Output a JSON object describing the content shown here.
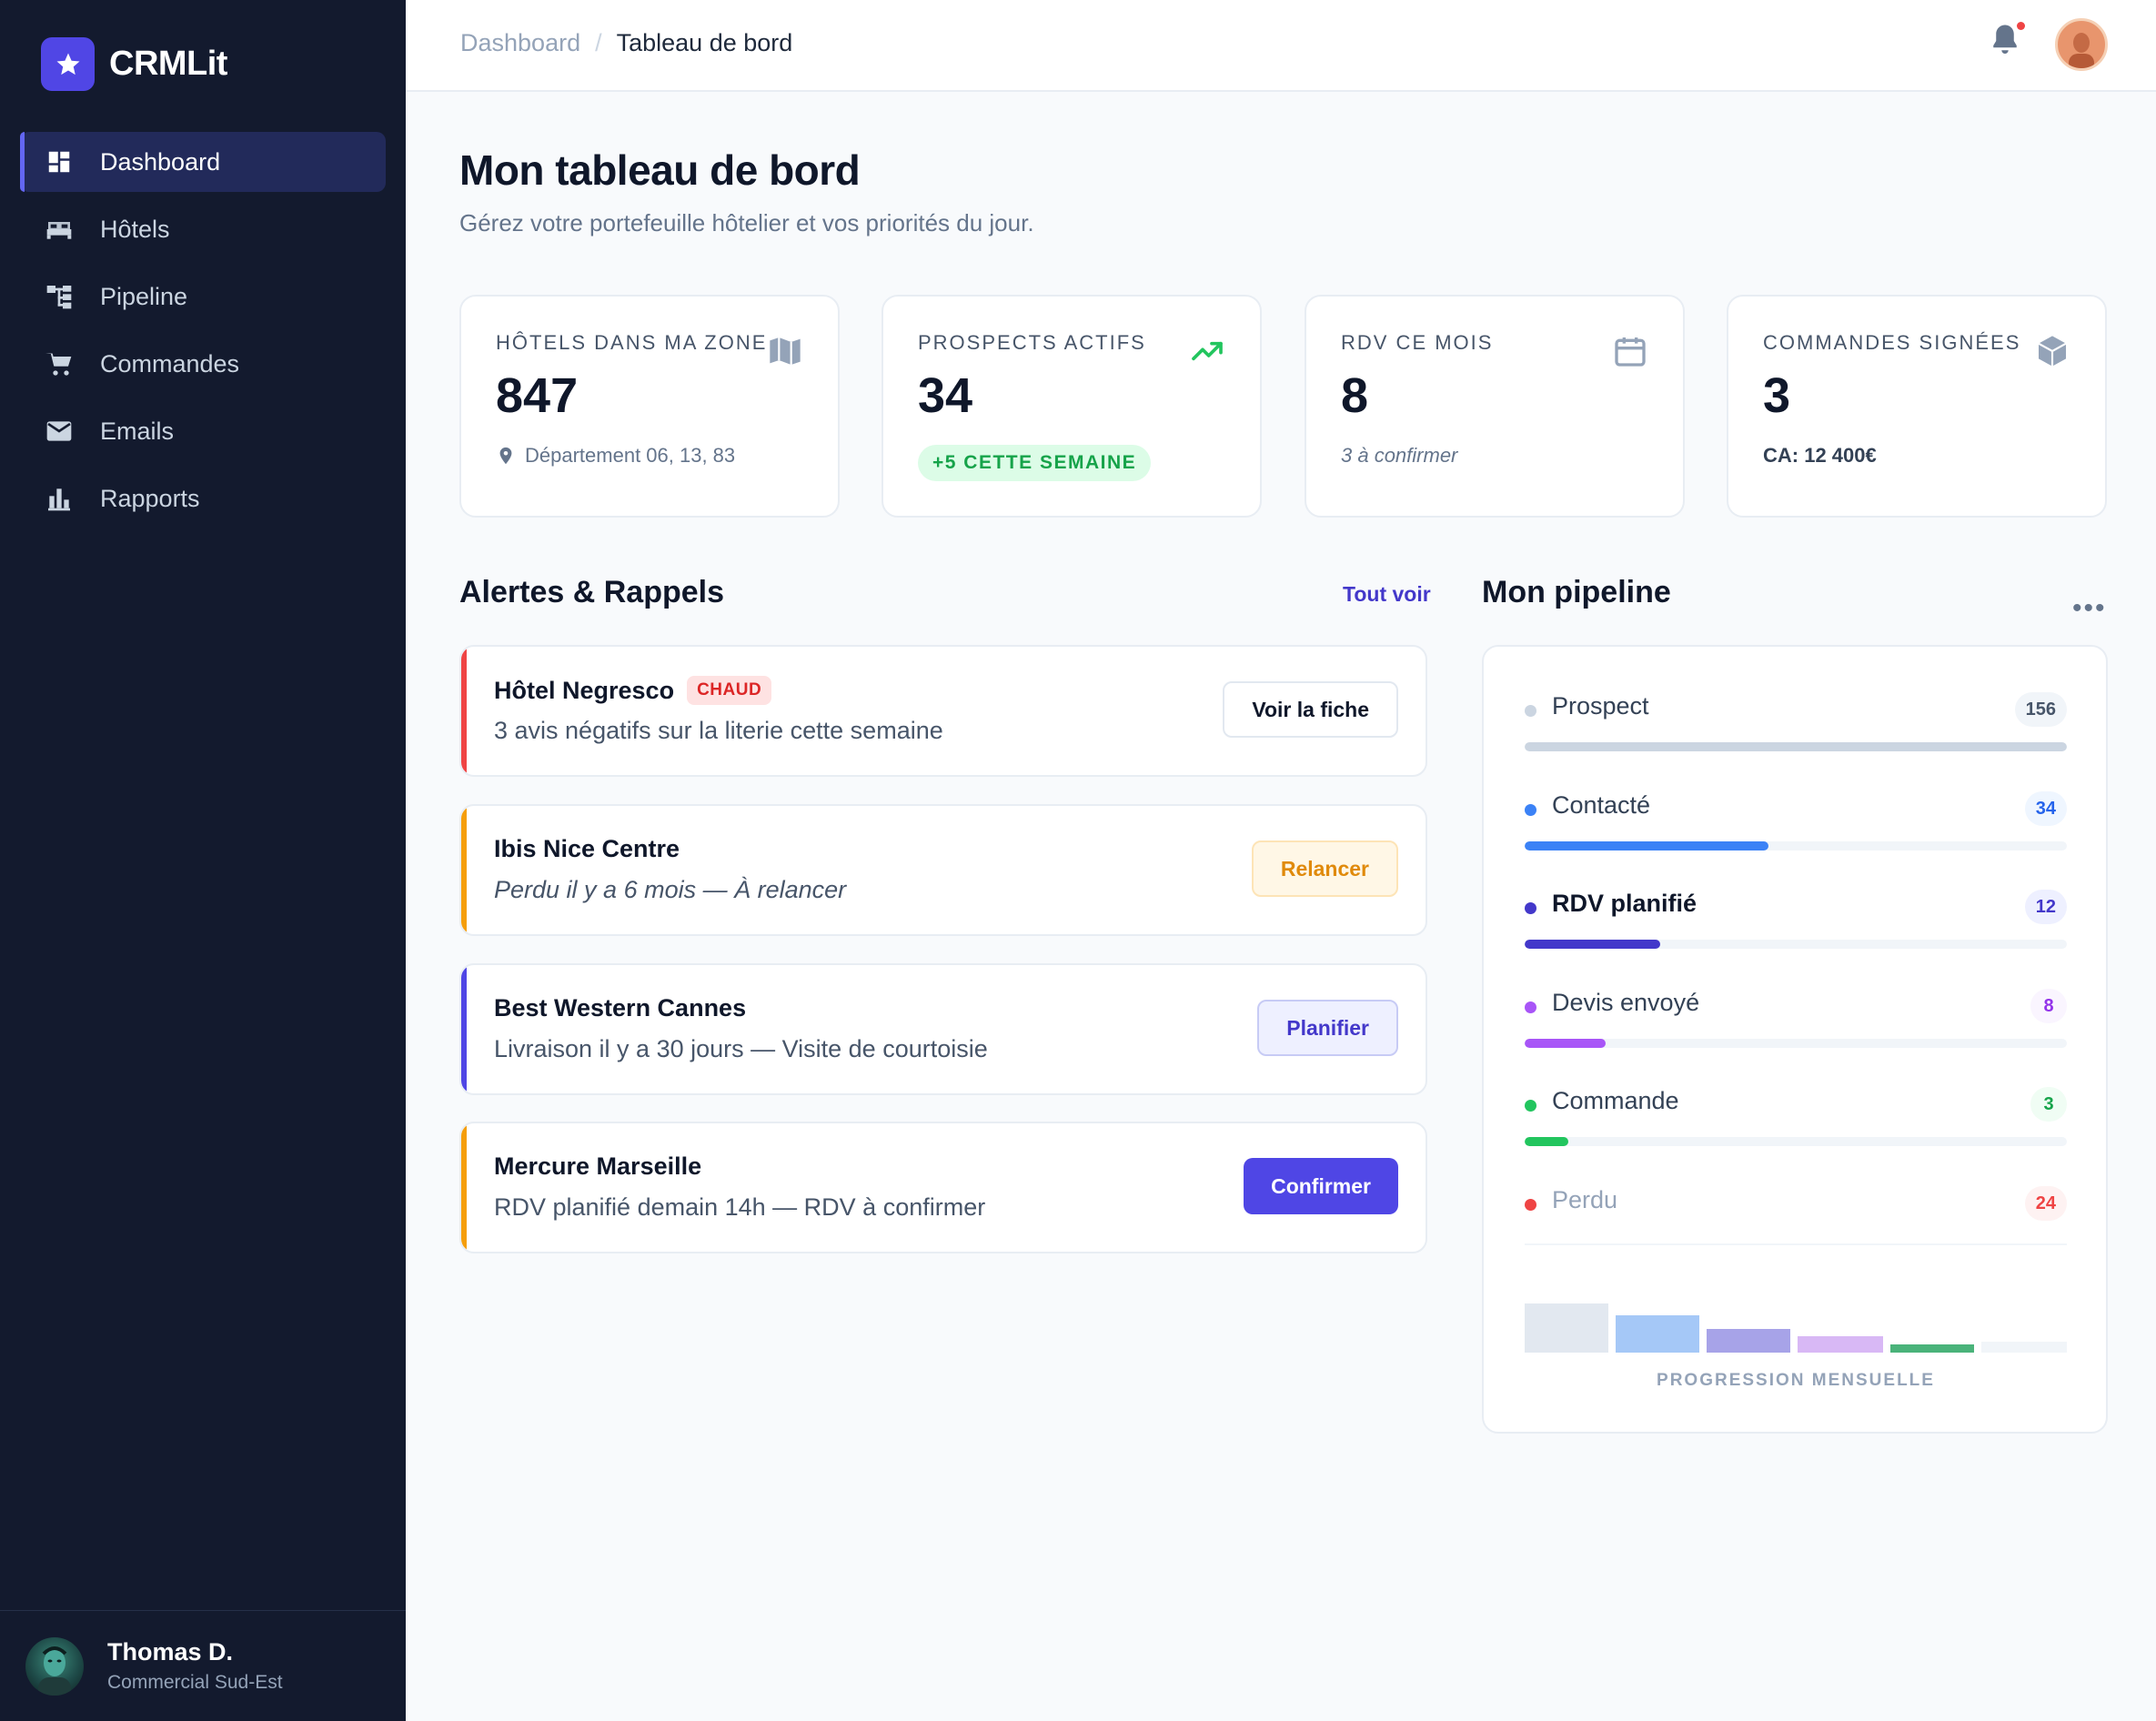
{
  "brand": {
    "name": "CRMLit"
  },
  "nav": [
    {
      "label": "Dashboard",
      "icon": "dashboard-icon",
      "active": true
    },
    {
      "label": "Hôtels",
      "icon": "bed-icon"
    },
    {
      "label": "Pipeline",
      "icon": "hierarchy-icon"
    },
    {
      "label": "Commandes",
      "icon": "cart-icon"
    },
    {
      "label": "Emails",
      "icon": "mail-icon"
    },
    {
      "label": "Rapports",
      "icon": "bar-chart-icon"
    }
  ],
  "user": {
    "name": "Thomas D.",
    "role": "Commercial Sud-Est"
  },
  "breadcrumb": {
    "root": "Dashboard",
    "separator": "/",
    "current": "Tableau de bord"
  },
  "page": {
    "title": "Mon tableau de bord",
    "subtitle": "Gérez votre portefeuille hôtelier et vos priorités du jour."
  },
  "stats": [
    {
      "label": "HÔTELS DANS MA ZONE",
      "value": "847",
      "foot": "Département 06, 13, 83",
      "icon": "map-icon"
    },
    {
      "label": "PROSPECTS ACTIFS",
      "value": "34",
      "foot": "+5 CETTE SEMAINE",
      "icon": "trending-up-icon"
    },
    {
      "label": "RDV CE MOIS",
      "value": "8",
      "foot": "3 à confirmer",
      "icon": "calendar-icon"
    },
    {
      "label": "COMMANDES SIGNÉES",
      "value": "3",
      "foot": "CA: 12 400€",
      "icon": "box-icon"
    }
  ],
  "alerts": {
    "title": "Alertes & Rappels",
    "see_all": "Tout voir",
    "items": [
      {
        "title": "Hôtel Negresco",
        "tag": "CHAUD",
        "desc": "3 avis négatifs sur la literie cette semaine",
        "action": "Voir la fiche",
        "accent": "#ef4444"
      },
      {
        "title": "Ibis Nice Centre",
        "desc": "Perdu il y a 6 mois — À relancer",
        "action": "Relancer",
        "accent": "#f59e0b"
      },
      {
        "title": "Best Western Cannes",
        "desc": "Livraison il y a 30 jours — Visite de courtoisie",
        "action": "Planifier",
        "accent": "#4f46e5"
      },
      {
        "title": "Mercure Marseille",
        "desc": "RDV planifié demain 14h — RDV à confirmer",
        "action": "Confirmer",
        "accent": "#f59e0b"
      }
    ]
  },
  "pipeline": {
    "title": "Mon pipeline",
    "stages": [
      {
        "label": "Prospect",
        "count": "156",
        "color": "#cbd5e1",
        "fill": 1.0
      },
      {
        "label": "Contacté",
        "count": "34",
        "color": "#3b82f6",
        "fill": 0.45
      },
      {
        "label": "RDV planifié",
        "count": "12",
        "color": "#4338ca",
        "fill": 0.25
      },
      {
        "label": "Devis envoyé",
        "count": "8",
        "color": "#a855f7",
        "fill": 0.15
      },
      {
        "label": "Commande",
        "count": "3",
        "color": "#22c55e",
        "fill": 0.08
      },
      {
        "label": "Perdu",
        "count": "24",
        "color": "#ef4444",
        "fill": 0
      }
    ],
    "mini_caption": "PROGRESSION MENSUELLE"
  }
}
